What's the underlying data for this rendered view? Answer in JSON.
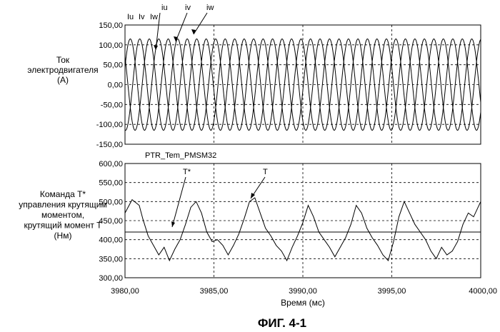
{
  "figure_title": "ФИГ. 4-1",
  "chart_data": [
    {
      "type": "line",
      "ylabel_lines": [
        "Ток",
        "электродвигателя",
        "(A)"
      ],
      "legend_header": [
        "Iu",
        "Iv",
        "Iw"
      ],
      "series": [
        {
          "name": "iu",
          "amplitude": 115,
          "period_ms": 1.6,
          "phase_deg": 0
        },
        {
          "name": "iv",
          "amplitude": 115,
          "period_ms": 1.6,
          "phase_deg": -120
        },
        {
          "name": "iw",
          "amplitude": 115,
          "period_ms": 1.6,
          "phase_deg": 120
        }
      ],
      "xlim": [
        3980,
        4000
      ],
      "ylim": [
        -150,
        150
      ],
      "yticks": [
        "150,00",
        "100,00",
        "50,00",
        "0,00",
        "-50,00",
        "-100,00",
        "-150,00"
      ],
      "ytick_values": [
        150,
        100,
        50,
        0,
        -50,
        -100,
        -150
      ],
      "grid": true
    },
    {
      "type": "line",
      "panel_title": "PTR_Tem_PMSM32",
      "ylabel_lines": [
        "Команда T*",
        "управления крутящим",
        "моментом,",
        "крутящий момент T",
        "(Нм)"
      ],
      "series": [
        {
          "name": "T*",
          "constant": 420
        },
        {
          "name": "T",
          "x": [
            3980.0,
            3980.4,
            3980.8,
            3981.0,
            3981.3,
            3981.6,
            3981.9,
            3982.2,
            3982.5,
            3982.8,
            3983.1,
            3983.4,
            3983.7,
            3984.0,
            3984.3,
            3984.6,
            3984.9,
            3985.2,
            3985.5,
            3985.8,
            3986.1,
            3986.4,
            3986.7,
            3987.0,
            3987.3,
            3987.6,
            3987.9,
            3988.2,
            3988.5,
            3988.8,
            3989.1,
            3989.4,
            3989.7,
            3990.0,
            3990.3,
            3990.6,
            3990.9,
            3991.2,
            3991.5,
            3991.8,
            3992.1,
            3992.4,
            3992.7,
            3993.0,
            3993.3,
            3993.6,
            3993.9,
            3994.2,
            3994.5,
            3994.8,
            3995.1,
            3995.4,
            3995.7,
            3996.0,
            3996.3,
            3996.6,
            3996.9,
            3997.2,
            3997.5,
            3997.8,
            3998.1,
            3998.4,
            3998.7,
            3999.0,
            3999.3,
            3999.6,
            4000.0
          ],
          "y": [
            470,
            505,
            490,
            455,
            410,
            385,
            360,
            380,
            345,
            375,
            400,
            440,
            485,
            500,
            470,
            420,
            395,
            400,
            385,
            360,
            385,
            415,
            455,
            500,
            510,
            470,
            430,
            410,
            385,
            370,
            345,
            380,
            410,
            445,
            490,
            460,
            420,
            400,
            380,
            355,
            380,
            405,
            440,
            490,
            470,
            430,
            405,
            385,
            360,
            345,
            395,
            460,
            500,
            470,
            440,
            420,
            400,
            370,
            350,
            380,
            360,
            370,
            395,
            440,
            470,
            460,
            500
          ]
        }
      ],
      "annotations": [
        "T*",
        "T"
      ],
      "xlim": [
        3980,
        4000
      ],
      "ylim": [
        300,
        600
      ],
      "yticks": [
        "600,00",
        "550,00",
        "500,00",
        "450,00",
        "400,00",
        "350,00",
        "300,00"
      ],
      "ytick_values": [
        600,
        550,
        500,
        450,
        400,
        350,
        300
      ],
      "xticks": [
        "3980,00",
        "3985,00",
        "3990,00",
        "3995,00",
        "4000,00"
      ],
      "xtick_values": [
        3980,
        3985,
        3990,
        3995,
        4000
      ],
      "xlabel": "Время (мс)",
      "grid": true
    }
  ]
}
